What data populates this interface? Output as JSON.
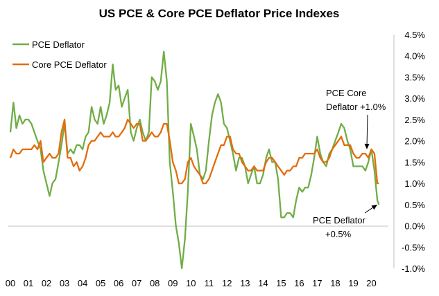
{
  "chart_data": {
    "type": "line",
    "title": "US PCE & Core PCE Deflator Price Indexes",
    "x_tick_labels": [
      "00",
      "01",
      "02",
      "03",
      "04",
      "05",
      "06",
      "07",
      "08",
      "09",
      "10",
      "11",
      "12",
      "13",
      "14",
      "15",
      "16",
      "17",
      "18",
      "19",
      "20"
    ],
    "y_tick_labels": [
      "4.5%",
      "4.0%",
      "3.5%",
      "3.0%",
      "2.5%",
      "2.0%",
      "1.5%",
      "1.0%",
      "0.5%",
      "0.0%",
      "-0.5%",
      "-1.0%"
    ],
    "ylim": [
      -1.0,
      4.5
    ],
    "xlim": [
      2000.0,
      2020.75
    ],
    "grid": false,
    "legend_position": "top-left",
    "series": [
      {
        "name": "PCE Deflator",
        "color": "#70ad47",
        "points": [
          [
            2000.0,
            2.2
          ],
          [
            2000.17,
            2.9
          ],
          [
            2000.33,
            2.3
          ],
          [
            2000.5,
            2.6
          ],
          [
            2000.67,
            2.4
          ],
          [
            2000.83,
            2.5
          ],
          [
            2001.0,
            2.5
          ],
          [
            2001.17,
            2.4
          ],
          [
            2001.33,
            2.2
          ],
          [
            2001.5,
            2.0
          ],
          [
            2001.67,
            1.8
          ],
          [
            2001.83,
            1.3
          ],
          [
            2002.0,
            1.0
          ],
          [
            2002.17,
            0.7
          ],
          [
            2002.33,
            1.0
          ],
          [
            2002.5,
            1.1
          ],
          [
            2002.67,
            1.5
          ],
          [
            2002.83,
            1.9
          ],
          [
            2003.0,
            2.4
          ],
          [
            2003.17,
            1.7
          ],
          [
            2003.33,
            1.8
          ],
          [
            2003.5,
            1.7
          ],
          [
            2003.67,
            1.9
          ],
          [
            2003.83,
            1.9
          ],
          [
            2004.0,
            1.8
          ],
          [
            2004.17,
            2.1
          ],
          [
            2004.33,
            2.2
          ],
          [
            2004.5,
            2.8
          ],
          [
            2004.67,
            2.5
          ],
          [
            2004.83,
            2.4
          ],
          [
            2005.0,
            2.8
          ],
          [
            2005.17,
            2.4
          ],
          [
            2005.33,
            2.6
          ],
          [
            2005.5,
            2.9
          ],
          [
            2005.67,
            3.8
          ],
          [
            2005.83,
            3.2
          ],
          [
            2006.0,
            3.3
          ],
          [
            2006.17,
            2.8
          ],
          [
            2006.33,
            3.0
          ],
          [
            2006.5,
            3.2
          ],
          [
            2006.67,
            2.2
          ],
          [
            2006.83,
            2.0
          ],
          [
            2007.0,
            2.3
          ],
          [
            2007.17,
            2.5
          ],
          [
            2007.33,
            2.2
          ],
          [
            2007.5,
            2.0
          ],
          [
            2007.67,
            2.2
          ],
          [
            2007.83,
            3.5
          ],
          [
            2008.0,
            3.4
          ],
          [
            2008.17,
            3.2
          ],
          [
            2008.33,
            3.4
          ],
          [
            2008.5,
            4.1
          ],
          [
            2008.67,
            3.4
          ],
          [
            2008.83,
            1.5
          ],
          [
            2009.0,
            0.8
          ],
          [
            2009.17,
            0.0
          ],
          [
            2009.33,
            -0.4
          ],
          [
            2009.5,
            -1.0
          ],
          [
            2009.67,
            -0.3
          ],
          [
            2009.83,
            0.8
          ],
          [
            2010.0,
            2.4
          ],
          [
            2010.17,
            2.1
          ],
          [
            2010.33,
            1.8
          ],
          [
            2010.5,
            1.2
          ],
          [
            2010.67,
            1.1
          ],
          [
            2010.83,
            1.3
          ],
          [
            2011.0,
            2.0
          ],
          [
            2011.17,
            2.6
          ],
          [
            2011.33,
            2.9
          ],
          [
            2011.5,
            3.1
          ],
          [
            2011.67,
            2.9
          ],
          [
            2011.83,
            2.4
          ],
          [
            2012.0,
            2.3
          ],
          [
            2012.17,
            2.0
          ],
          [
            2012.33,
            1.7
          ],
          [
            2012.5,
            1.3
          ],
          [
            2012.67,
            1.6
          ],
          [
            2012.83,
            1.6
          ],
          [
            2013.0,
            1.4
          ],
          [
            2013.17,
            1.0
          ],
          [
            2013.33,
            1.2
          ],
          [
            2013.5,
            1.4
          ],
          [
            2013.67,
            1.0
          ],
          [
            2013.83,
            1.0
          ],
          [
            2014.0,
            1.2
          ],
          [
            2014.17,
            1.6
          ],
          [
            2014.33,
            1.8
          ],
          [
            2014.5,
            1.5
          ],
          [
            2014.67,
            1.5
          ],
          [
            2014.83,
            1.1
          ],
          [
            2015.0,
            0.2
          ],
          [
            2015.17,
            0.2
          ],
          [
            2015.33,
            0.3
          ],
          [
            2015.5,
            0.3
          ],
          [
            2015.67,
            0.2
          ],
          [
            2015.83,
            0.6
          ],
          [
            2016.0,
            0.9
          ],
          [
            2016.17,
            0.8
          ],
          [
            2016.33,
            0.9
          ],
          [
            2016.5,
            0.9
          ],
          [
            2016.67,
            1.2
          ],
          [
            2016.83,
            1.6
          ],
          [
            2017.0,
            2.1
          ],
          [
            2017.17,
            1.7
          ],
          [
            2017.33,
            1.5
          ],
          [
            2017.5,
            1.4
          ],
          [
            2017.67,
            1.7
          ],
          [
            2017.83,
            1.8
          ],
          [
            2018.0,
            2.0
          ],
          [
            2018.17,
            2.2
          ],
          [
            2018.33,
            2.4
          ],
          [
            2018.5,
            2.3
          ],
          [
            2018.67,
            2.0
          ],
          [
            2018.83,
            1.8
          ],
          [
            2019.0,
            1.4
          ],
          [
            2019.17,
            1.4
          ],
          [
            2019.33,
            1.4
          ],
          [
            2019.5,
            1.4
          ],
          [
            2019.67,
            1.3
          ],
          [
            2019.83,
            1.5
          ],
          [
            2020.0,
            1.8
          ],
          [
            2020.17,
            1.3
          ],
          [
            2020.33,
            0.6
          ],
          [
            2020.42,
            0.5
          ]
        ]
      },
      {
        "name": "Core PCE Deflator",
        "color": "#e46c0a",
        "points": [
          [
            2000.0,
            1.6
          ],
          [
            2000.17,
            1.8
          ],
          [
            2000.33,
            1.7
          ],
          [
            2000.5,
            1.7
          ],
          [
            2000.67,
            1.8
          ],
          [
            2000.83,
            1.8
          ],
          [
            2001.0,
            1.8
          ],
          [
            2001.17,
            1.8
          ],
          [
            2001.33,
            1.9
          ],
          [
            2001.5,
            1.8
          ],
          [
            2001.67,
            2.0
          ],
          [
            2001.83,
            1.5
          ],
          [
            2002.0,
            1.6
          ],
          [
            2002.17,
            1.7
          ],
          [
            2002.33,
            1.6
          ],
          [
            2002.5,
            1.6
          ],
          [
            2002.67,
            1.7
          ],
          [
            2002.83,
            2.2
          ],
          [
            2003.0,
            2.5
          ],
          [
            2003.17,
            1.6
          ],
          [
            2003.33,
            1.6
          ],
          [
            2003.5,
            1.4
          ],
          [
            2003.67,
            1.5
          ],
          [
            2003.83,
            1.3
          ],
          [
            2004.0,
            1.4
          ],
          [
            2004.17,
            1.6
          ],
          [
            2004.33,
            1.9
          ],
          [
            2004.5,
            2.0
          ],
          [
            2004.67,
            2.0
          ],
          [
            2004.83,
            2.1
          ],
          [
            2005.0,
            2.2
          ],
          [
            2005.17,
            2.1
          ],
          [
            2005.33,
            2.1
          ],
          [
            2005.5,
            2.1
          ],
          [
            2005.67,
            2.2
          ],
          [
            2005.83,
            2.1
          ],
          [
            2006.0,
            2.1
          ],
          [
            2006.17,
            2.2
          ],
          [
            2006.33,
            2.3
          ],
          [
            2006.5,
            2.5
          ],
          [
            2006.67,
            2.4
          ],
          [
            2006.83,
            2.3
          ],
          [
            2007.0,
            2.4
          ],
          [
            2007.17,
            2.4
          ],
          [
            2007.33,
            2.0
          ],
          [
            2007.5,
            2.0
          ],
          [
            2007.67,
            2.1
          ],
          [
            2007.83,
            2.2
          ],
          [
            2008.0,
            2.1
          ],
          [
            2008.17,
            2.1
          ],
          [
            2008.33,
            2.2
          ],
          [
            2008.5,
            2.4
          ],
          [
            2008.67,
            2.4
          ],
          [
            2008.83,
            2.0
          ],
          [
            2009.0,
            1.5
          ],
          [
            2009.17,
            1.3
          ],
          [
            2009.33,
            1.0
          ],
          [
            2009.5,
            1.0
          ],
          [
            2009.67,
            1.1
          ],
          [
            2009.83,
            1.5
          ],
          [
            2010.0,
            1.6
          ],
          [
            2010.17,
            1.4
          ],
          [
            2010.33,
            1.3
          ],
          [
            2010.5,
            1.2
          ],
          [
            2010.67,
            1.0
          ],
          [
            2010.83,
            1.0
          ],
          [
            2011.0,
            1.1
          ],
          [
            2011.17,
            1.3
          ],
          [
            2011.33,
            1.5
          ],
          [
            2011.5,
            1.7
          ],
          [
            2011.67,
            1.9
          ],
          [
            2011.83,
            1.9
          ],
          [
            2012.0,
            2.1
          ],
          [
            2012.17,
            2.1
          ],
          [
            2012.33,
            1.8
          ],
          [
            2012.5,
            1.7
          ],
          [
            2012.67,
            1.7
          ],
          [
            2012.83,
            1.5
          ],
          [
            2013.0,
            1.4
          ],
          [
            2013.17,
            1.3
          ],
          [
            2013.33,
            1.3
          ],
          [
            2013.5,
            1.4
          ],
          [
            2013.67,
            1.3
          ],
          [
            2013.83,
            1.3
          ],
          [
            2014.0,
            1.3
          ],
          [
            2014.17,
            1.5
          ],
          [
            2014.33,
            1.6
          ],
          [
            2014.5,
            1.6
          ],
          [
            2014.67,
            1.5
          ],
          [
            2014.83,
            1.4
          ],
          [
            2015.0,
            1.3
          ],
          [
            2015.17,
            1.2
          ],
          [
            2015.33,
            1.3
          ],
          [
            2015.5,
            1.3
          ],
          [
            2015.67,
            1.4
          ],
          [
            2015.83,
            1.4
          ],
          [
            2016.0,
            1.6
          ],
          [
            2016.17,
            1.6
          ],
          [
            2016.33,
            1.7
          ],
          [
            2016.5,
            1.7
          ],
          [
            2016.67,
            1.7
          ],
          [
            2016.83,
            1.7
          ],
          [
            2017.0,
            1.8
          ],
          [
            2017.17,
            1.6
          ],
          [
            2017.33,
            1.5
          ],
          [
            2017.5,
            1.5
          ],
          [
            2017.67,
            1.6
          ],
          [
            2017.83,
            1.8
          ],
          [
            2018.0,
            1.9
          ],
          [
            2018.17,
            2.0
          ],
          [
            2018.33,
            2.1
          ],
          [
            2018.5,
            1.9
          ],
          [
            2018.67,
            1.9
          ],
          [
            2018.83,
            1.9
          ],
          [
            2019.0,
            1.7
          ],
          [
            2019.17,
            1.6
          ],
          [
            2019.33,
            1.6
          ],
          [
            2019.5,
            1.7
          ],
          [
            2019.67,
            1.7
          ],
          [
            2019.83,
            1.6
          ],
          [
            2020.0,
            1.8
          ],
          [
            2020.17,
            1.7
          ],
          [
            2020.33,
            1.0
          ],
          [
            2020.42,
            1.0
          ]
        ]
      }
    ],
    "annotations": [
      {
        "lines": [
          "PCE Core",
          "Deflator +1.0%"
        ],
        "target": [
          2019.75,
          1.8
        ]
      },
      {
        "lines": [
          "PCE Deflator",
          "+0.5%"
        ],
        "target": [
          2020.33,
          0.5
        ]
      }
    ]
  }
}
